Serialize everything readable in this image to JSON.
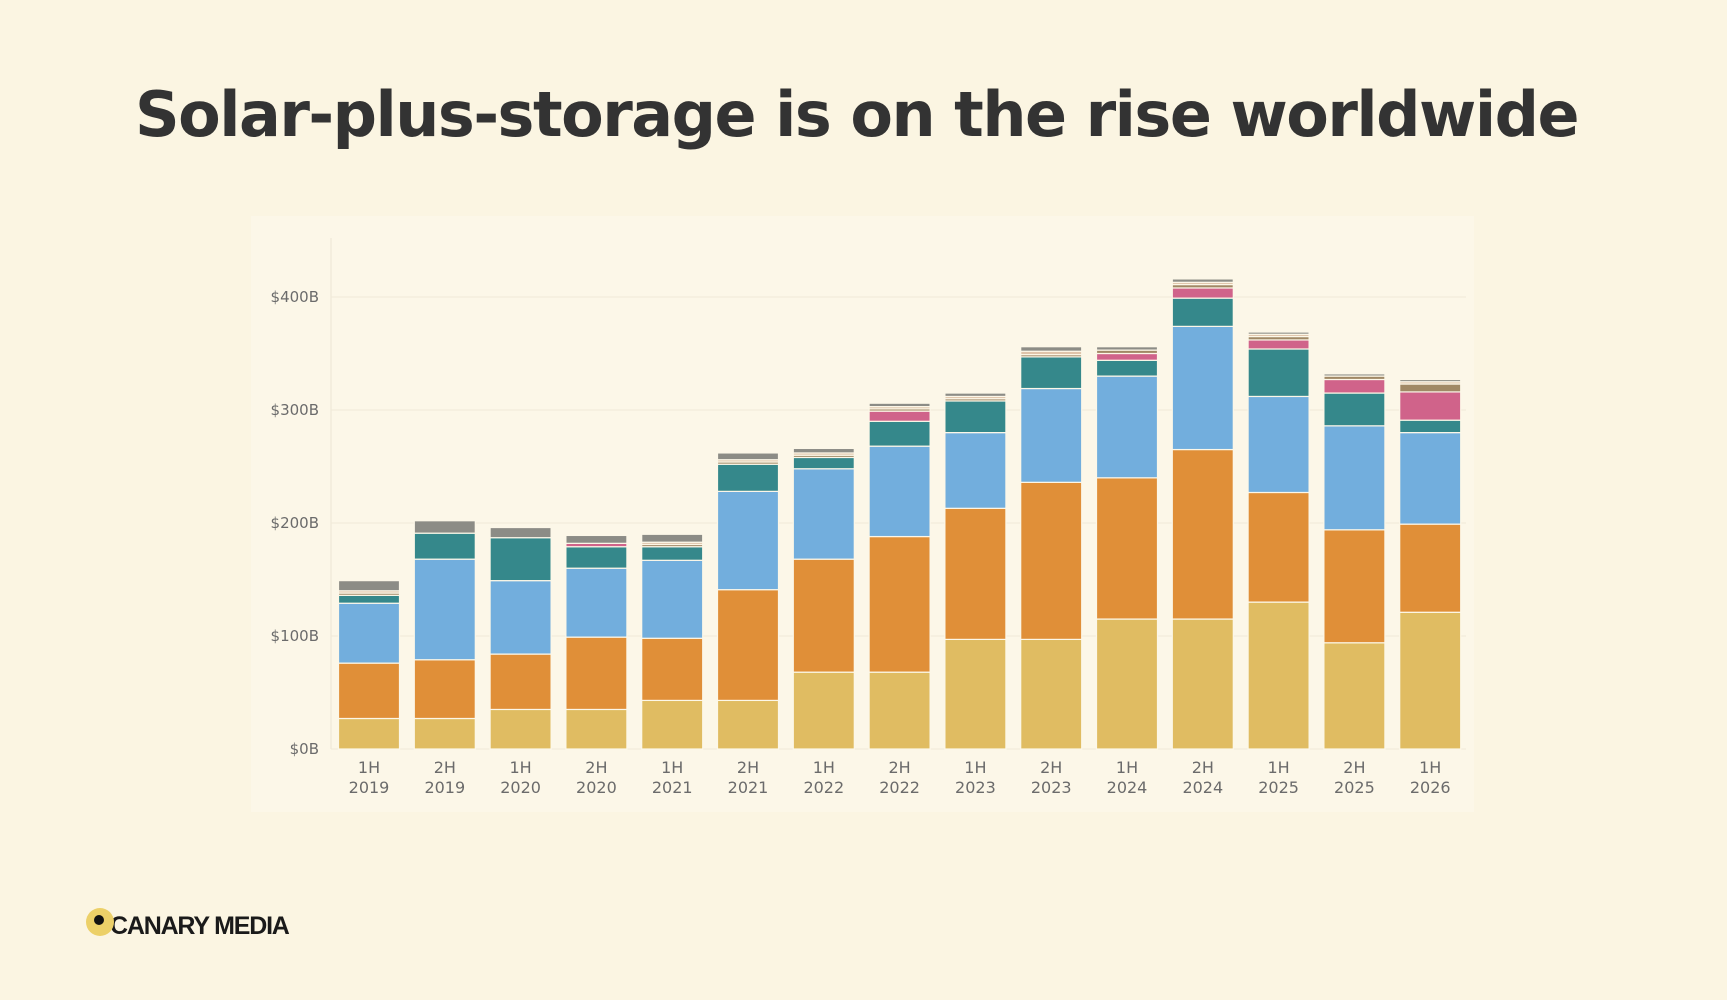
{
  "page": {
    "title": "Solar-plus-storage is on the rise worldwide",
    "brand": "CANARY MEDIA"
  },
  "chart_data": {
    "type": "bar",
    "stacked": true,
    "title": "Solar-plus-storage is on the rise worldwide",
    "xlabel": "",
    "ylabel": "",
    "ylim": [
      0,
      450
    ],
    "y_ticks": [
      0,
      100,
      200,
      300,
      400
    ],
    "y_tick_labels": [
      "$0B",
      "$100B",
      "$200B",
      "$300B",
      "$400B"
    ],
    "grid": true,
    "legend": "none",
    "categories": [
      [
        "1H",
        "2019"
      ],
      [
        "2H",
        "2019"
      ],
      [
        "1H",
        "2020"
      ],
      [
        "2H",
        "2020"
      ],
      [
        "1H",
        "2021"
      ],
      [
        "2H",
        "2021"
      ],
      [
        "1H",
        "2022"
      ],
      [
        "2H",
        "2022"
      ],
      [
        "1H",
        "2023"
      ],
      [
        "2H",
        "2023"
      ],
      [
        "1H",
        "2024"
      ],
      [
        "2H",
        "2024"
      ],
      [
        "1H",
        "2025"
      ],
      [
        "2H",
        "2025"
      ],
      [
        "1H",
        "2026"
      ]
    ],
    "series": [
      {
        "color": "#e0bc62",
        "values": [
          27,
          27,
          35,
          35,
          43,
          43,
          68,
          68,
          97,
          97,
          115,
          115,
          130,
          94,
          121
        ]
      },
      {
        "color": "#e08f38",
        "values": [
          49,
          52,
          49,
          64,
          55,
          98,
          100,
          120,
          116,
          139,
          125,
          150,
          97,
          100,
          78
        ]
      },
      {
        "color": "#72aedd",
        "values": [
          53,
          89,
          65,
          61,
          69,
          87,
          80,
          80,
          67,
          83,
          90,
          109,
          85,
          92,
          81
        ]
      },
      {
        "color": "#35888b",
        "values": [
          7,
          23,
          38,
          19,
          12,
          24,
          10,
          22,
          28,
          28,
          14,
          25,
          42,
          29,
          11
        ]
      },
      {
        "color": "#d0638a",
        "values": [
          0,
          0,
          0,
          3,
          0,
          0,
          0,
          9,
          0,
          0,
          6,
          9,
          8,
          12,
          25
        ]
      },
      {
        "color": "#a08865",
        "values": [
          2,
          0,
          0,
          0,
          2,
          2,
          2,
          2,
          2,
          2,
          3,
          3,
          3,
          3,
          7
        ]
      },
      {
        "color": "#dfc4aa",
        "values": [
          2,
          0,
          0,
          0,
          2,
          2,
          2,
          2,
          2,
          3,
          0,
          2,
          2,
          0,
          2
        ]
      },
      {
        "color": "#8c8c86",
        "values": [
          9,
          11,
          9,
          7,
          7,
          6,
          4,
          3,
          3,
          4,
          3,
          3,
          2,
          2,
          2
        ]
      }
    ]
  }
}
